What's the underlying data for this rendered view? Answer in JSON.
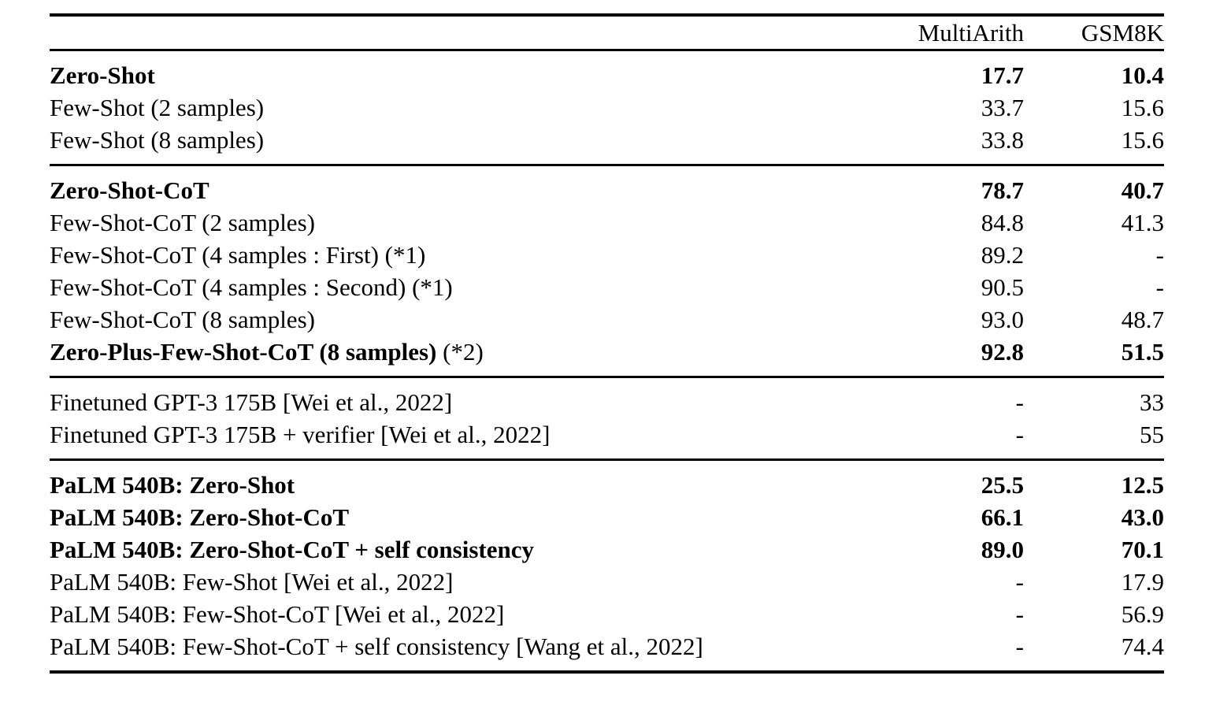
{
  "table": {
    "columns": [
      "",
      "MultiArith",
      "GSM8K"
    ],
    "sections": [
      {
        "rows": [
          {
            "label": "Zero-Shot",
            "label_suffix": "",
            "bold": true,
            "multiarith": "17.7",
            "gsm8k": "10.4"
          },
          {
            "label": "Few-Shot (2 samples)",
            "label_suffix": "",
            "bold": false,
            "multiarith": "33.7",
            "gsm8k": "15.6"
          },
          {
            "label": "Few-Shot (8 samples)",
            "label_suffix": "",
            "bold": false,
            "multiarith": "33.8",
            "gsm8k": "15.6"
          }
        ]
      },
      {
        "rows": [
          {
            "label": "Zero-Shot-CoT",
            "label_suffix": "",
            "bold": true,
            "multiarith": "78.7",
            "gsm8k": "40.7"
          },
          {
            "label": "Few-Shot-CoT (2 samples)",
            "label_suffix": "",
            "bold": false,
            "multiarith": "84.8",
            "gsm8k": "41.3"
          },
          {
            "label": "Few-Shot-CoT (4 samples : First) (*1)",
            "label_suffix": "",
            "bold": false,
            "multiarith": "89.2",
            "gsm8k": "-"
          },
          {
            "label": "Few-Shot-CoT (4 samples : Second) (*1)",
            "label_suffix": "",
            "bold": false,
            "multiarith": "90.5",
            "gsm8k": "-"
          },
          {
            "label": "Few-Shot-CoT (8 samples)",
            "label_suffix": "",
            "bold": false,
            "multiarith": "93.0",
            "gsm8k": "48.7"
          },
          {
            "label": "Zero-Plus-Few-Shot-CoT (8 samples)",
            "label_suffix": " (*2)",
            "bold": true,
            "multiarith": "92.8",
            "gsm8k": "51.5"
          }
        ]
      },
      {
        "rows": [
          {
            "label": "Finetuned GPT-3 175B [Wei et al., 2022]",
            "label_suffix": "",
            "bold": false,
            "multiarith": "-",
            "gsm8k": "33"
          },
          {
            "label": "Finetuned GPT-3 175B + verifier [Wei et al., 2022]",
            "label_suffix": "",
            "bold": false,
            "multiarith": "-",
            "gsm8k": "55"
          }
        ]
      },
      {
        "rows": [
          {
            "label": "PaLM 540B: Zero-Shot",
            "label_suffix": "",
            "bold": true,
            "multiarith": "25.5",
            "gsm8k": "12.5"
          },
          {
            "label": "PaLM 540B: Zero-Shot-CoT",
            "label_suffix": "",
            "bold": true,
            "multiarith": "66.1",
            "gsm8k": "43.0"
          },
          {
            "label": "PaLM 540B: Zero-Shot-CoT + self consistency",
            "label_suffix": "",
            "bold": true,
            "multiarith": "89.0",
            "gsm8k": "70.1"
          },
          {
            "label": "PaLM 540B: Few-Shot [Wei et al., 2022]",
            "label_suffix": "",
            "bold": false,
            "multiarith": "-",
            "gsm8k": "17.9"
          },
          {
            "label": "PaLM 540B: Few-Shot-CoT [Wei et al., 2022]",
            "label_suffix": "",
            "bold": false,
            "multiarith": "-",
            "gsm8k": "56.9"
          },
          {
            "label": "PaLM 540B: Few-Shot-CoT + self consistency [Wang et al., 2022]",
            "label_suffix": "",
            "bold": false,
            "multiarith": "-",
            "gsm8k": "74.4"
          }
        ]
      }
    ],
    "colors": {
      "text": "#000000",
      "background": "#ffffff",
      "rule": "#000000"
    }
  }
}
